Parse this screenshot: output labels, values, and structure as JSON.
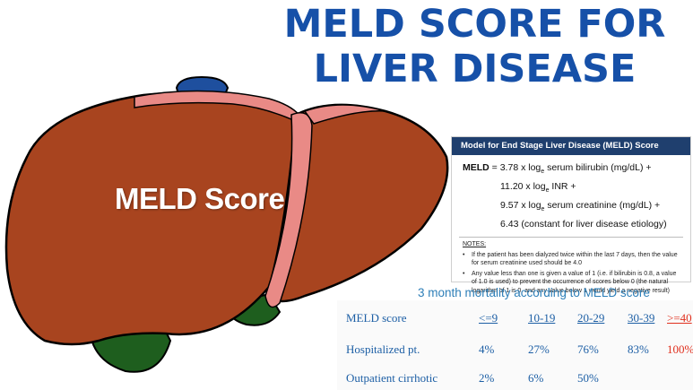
{
  "title": {
    "line1": "MELD SCORE FOR",
    "line2": "LIVER DISEASE"
  },
  "liver_label": "MELD Score",
  "formula": {
    "header": "Model for End Stage Liver Disease (MELD) Score",
    "lead": "MELD",
    "line1_rest": " = 3.78 x log",
    "line1_tail": " serum bilirubin (mg/dL) +",
    "line2_a": "11.20 x log",
    "line2_b": " INR +",
    "line3_a": "9.57 x log",
    "line3_b": " serum creatinine (mg/dL) +",
    "line4": "6.43 (constant for liver disease etiology)",
    "log_sub": "e",
    "notes_title": "NOTES:",
    "notes": [
      "If the patient has been dialyzed twice within the last 7 days, then the value for serum creatinine used should be 4.0",
      "Any value less than one is given a value of 1 (i.e. if bilirubin is 0.8, a value of 1.0 is used) to prevent the occurrence of scores below 0 (the natural logarithm of 1 is 0, and any value below 1 would yield a negative result)"
    ],
    "bullet": "•"
  },
  "mortality": {
    "title": "3 month mortality according to MELD score",
    "header": {
      "label": "MELD score",
      "c1": "<=9",
      "c2": "10-19",
      "c3": "20-29",
      "c4": "30-39",
      "c5": ">=40"
    },
    "row1": {
      "label": "Hospitalized pt.",
      "c1": "4%",
      "c2": "27%",
      "c3": "76%",
      "c4": "83%",
      "c5": "100%"
    },
    "row2": {
      "label": "Outpatient cirrhotic",
      "c1": "2%",
      "c2": "6%",
      "c3": "50%"
    }
  },
  "colors": {
    "title": "#1650a8",
    "liver": "#a8441f",
    "stripe": "#e98a86",
    "gallbladder": "#1e5e1e",
    "vessel": "#1e4f9e",
    "red": "#e0301e"
  }
}
